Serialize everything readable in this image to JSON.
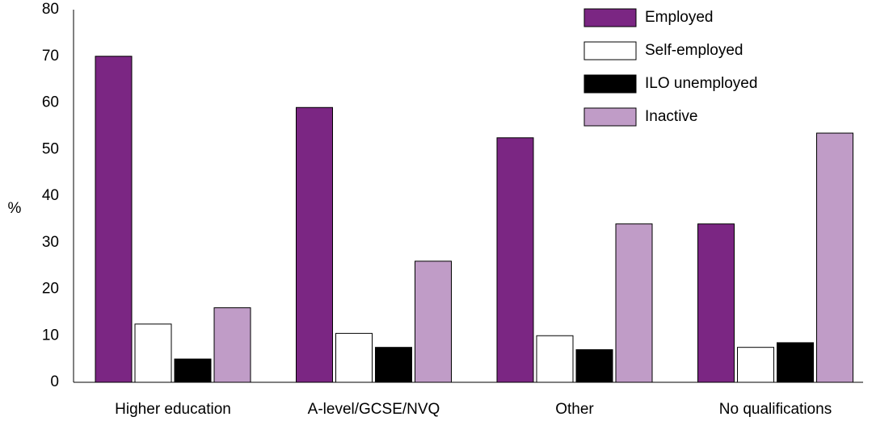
{
  "chart_data": {
    "type": "bar",
    "title": "",
    "xlabel": "",
    "ylabel": "%",
    "ylim": [
      0,
      80
    ],
    "yticks": [
      0,
      10,
      20,
      30,
      40,
      50,
      60,
      70,
      80
    ],
    "grid": false,
    "legend_position": "top-right",
    "categories": [
      "Higher education",
      "A-level/GCSE/NVQ",
      "Other",
      "No qualifications"
    ],
    "series": [
      {
        "name": "Employed",
        "color": "#7b2683",
        "values": [
          70,
          59,
          52.5,
          34
        ]
      },
      {
        "name": "Self-employed",
        "color": "#ffffff",
        "values": [
          12.5,
          10.5,
          10,
          7.5
        ]
      },
      {
        "name": "ILO unemployed",
        "color": "#000000",
        "values": [
          5,
          7.5,
          7,
          8.5
        ]
      },
      {
        "name": "Inactive",
        "color": "#c09cc7",
        "values": [
          16,
          26,
          34,
          53.5
        ]
      }
    ]
  }
}
